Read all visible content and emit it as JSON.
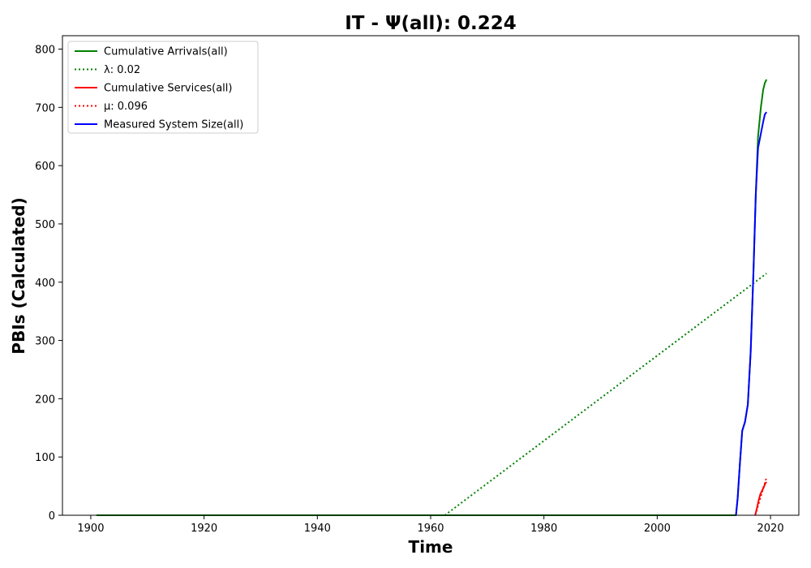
{
  "chart_data": {
    "type": "line",
    "title": "IT -  Ψ(all): 0.224",
    "xlabel": "Time",
    "ylabel": "PBIs (Calculated)",
    "xlim": [
      1895,
      2025
    ],
    "ylim": [
      0,
      823
    ],
    "x_ticks": [
      1900,
      1920,
      1940,
      1960,
      1980,
      2000,
      2020
    ],
    "y_ticks": [
      0,
      100,
      200,
      300,
      400,
      500,
      600,
      700,
      800
    ],
    "grid": false,
    "legend_position": "top-left",
    "series": [
      {
        "name": "Cumulative Arrivals(all)",
        "color": "#008000",
        "style": "solid",
        "x": [
          1901,
          1950,
          2000,
          2013.9,
          2014.2,
          2014.6,
          2015.0,
          2015.5,
          2016.0,
          2016.5,
          2017.0,
          2017.4,
          2017.8,
          2018.3,
          2018.7,
          2019.0,
          2019.3
        ],
        "y": [
          0,
          0,
          0,
          0,
          30,
          90,
          145,
          160,
          190,
          280,
          420,
          550,
          650,
          700,
          730,
          742,
          748
        ]
      },
      {
        "name": "λ: 0.02",
        "color": "#008000",
        "style": "dotted",
        "x": [
          1962.5,
          2019.3
        ],
        "y": [
          0,
          415
        ]
      },
      {
        "name": "Cumulative Services(all)",
        "color": "#ff0000",
        "style": "solid",
        "x": [
          2017.3,
          2017.6,
          2017.9,
          2018.2,
          2018.5,
          2018.8,
          2019.1,
          2019.3
        ],
        "y": [
          0,
          12,
          25,
          36,
          42,
          48,
          55,
          57
        ]
      },
      {
        "name": "μ: 0.096",
        "color": "#ff0000",
        "style": "dotted",
        "x": [
          2017.3,
          2019.3
        ],
        "y": [
          0,
          65
        ]
      },
      {
        "name": "Measured System Size(all)",
        "color": "#0000ff",
        "style": "solid",
        "x": [
          2013.9,
          2014.2,
          2014.6,
          2015.0,
          2015.5,
          2016.0,
          2016.5,
          2017.0,
          2017.4,
          2017.8,
          2018.3,
          2018.7,
          2019.0,
          2019.3
        ],
        "y": [
          0,
          30,
          90,
          145,
          160,
          190,
          280,
          420,
          550,
          630,
          655,
          675,
          688,
          692
        ]
      }
    ]
  }
}
